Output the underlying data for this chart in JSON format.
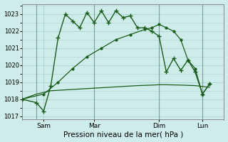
{
  "xlabel": "Pression niveau de la mer( hPa )",
  "ylim": [
    1016.8,
    1023.6
  ],
  "yticks": [
    1017,
    1018,
    1019,
    1020,
    1021,
    1022,
    1023
  ],
  "xlim": [
    0,
    14
  ],
  "bg_color": "#ceecea",
  "grid_color": "#a8d5d2",
  "dark_green": "#1a5c1a",
  "xtick_labels": [
    "Sam",
    "Mar",
    "Dim",
    "Lun"
  ],
  "xtick_pos": [
    1.5,
    5.0,
    9.5,
    12.5
  ],
  "vline_positions": [
    1.0,
    5.0,
    9.5,
    12.5
  ],
  "line1_x": [
    0.0,
    1.0,
    1.5,
    2.0,
    2.5,
    3.0,
    3.5,
    4.0,
    4.5,
    5.0,
    5.5,
    6.0,
    6.5,
    7.0,
    7.5,
    8.0,
    8.5,
    9.0,
    9.5,
    10.0,
    10.5,
    11.0,
    11.5,
    12.0,
    12.5,
    13.0
  ],
  "line1_y": [
    1018.0,
    1017.8,
    1017.3,
    1018.8,
    1021.6,
    1023.0,
    1022.6,
    1022.2,
    1023.1,
    1022.5,
    1023.2,
    1022.5,
    1023.2,
    1022.8,
    1022.9,
    1022.2,
    1022.2,
    1022.0,
    1021.7,
    1019.6,
    1020.4,
    1019.7,
    1020.3,
    1019.6,
    1018.3,
    1018.9
  ],
  "line2_x": [
    0.0,
    1.0,
    2.0,
    3.0,
    4.0,
    5.0,
    6.0,
    7.0,
    8.0,
    9.0,
    9.5,
    10.0,
    11.0,
    12.0,
    12.5,
    13.0
  ],
  "line2_y": [
    1018.0,
    1018.3,
    1018.5,
    1018.55,
    1018.6,
    1018.65,
    1018.7,
    1018.75,
    1018.8,
    1018.83,
    1018.85,
    1018.85,
    1018.83,
    1018.8,
    1018.75,
    1018.7
  ],
  "line3_x": [
    0.0,
    1.5,
    2.5,
    3.5,
    4.5,
    5.5,
    6.5,
    7.5,
    8.5,
    9.0,
    9.5,
    10.0,
    10.5,
    11.0,
    11.5,
    12.0,
    12.5,
    13.0
  ],
  "line3_y": [
    1018.0,
    1018.3,
    1019.0,
    1019.8,
    1020.5,
    1021.0,
    1021.5,
    1021.8,
    1022.1,
    1022.2,
    1022.4,
    1022.2,
    1022.0,
    1021.5,
    1020.3,
    1019.8,
    1018.3,
    1018.9
  ]
}
